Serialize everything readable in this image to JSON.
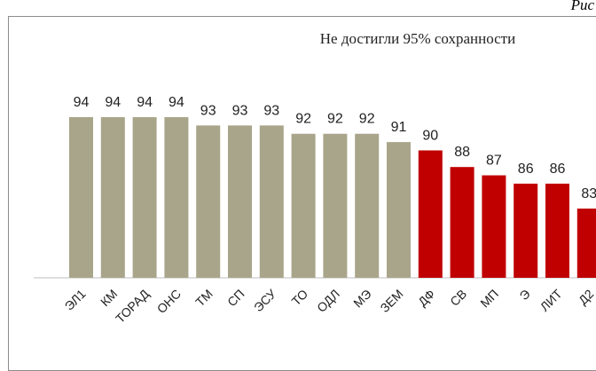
{
  "corner_text": "Рис",
  "chart_data": {
    "type": "bar",
    "title": "Не достигли 95% сохранности",
    "xlabel": "",
    "ylabel": "",
    "categories": [
      "ЭЛ1",
      "КМ",
      "ТОРАД",
      "ОНС",
      "ТМ",
      "СП",
      "ЭСУ",
      "ТО",
      "ОДЛ",
      "МЭ",
      "ЗЕМ",
      "ДФ",
      "СВ",
      "МП",
      "Э",
      "ЛИТ",
      "Д2"
    ],
    "values": [
      94,
      94,
      94,
      94,
      93,
      93,
      93,
      92,
      92,
      92,
      91,
      90,
      88,
      87,
      86,
      86,
      83
    ],
    "colors": [
      "#a9a58a",
      "#a9a58a",
      "#a9a58a",
      "#a9a58a",
      "#a9a58a",
      "#a9a58a",
      "#a9a58a",
      "#a9a58a",
      "#a9a58a",
      "#a9a58a",
      "#a9a58a",
      "#c00000",
      "#c00000",
      "#c00000",
      "#c00000",
      "#c00000",
      "#c00000"
    ],
    "grid": false,
    "legend": "none"
  }
}
